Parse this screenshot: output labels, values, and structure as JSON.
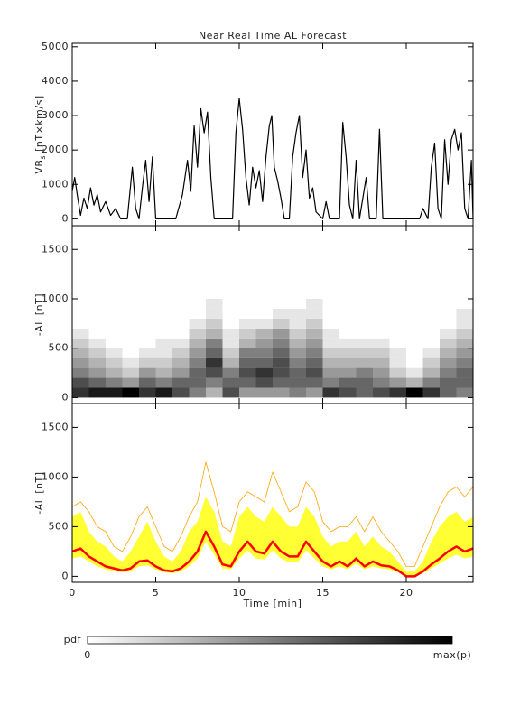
{
  "chart_data": [
    {
      "type": "line",
      "title": "Near Real Time AL Forecast",
      "ylabel": "VB",
      "ylabel_sub": "s",
      "ylabel_rest": "[nT×km/s]",
      "xlim": [
        0,
        24
      ],
      "ylim": [
        -200,
        5100
      ],
      "yticks": [
        0,
        1000,
        2000,
        3000,
        4000,
        5000
      ],
      "x": [
        0,
        0.15,
        0.3,
        0.5,
        0.7,
        0.9,
        1.1,
        1.3,
        1.5,
        1.7,
        2.0,
        2.3,
        2.6,
        2.9,
        3.3,
        3.6,
        3.8,
        4.0,
        4.2,
        4.4,
        4.6,
        4.8,
        5.0,
        5.5,
        6.2,
        6.6,
        6.9,
        7.1,
        7.3,
        7.5,
        7.7,
        7.9,
        8.1,
        8.3,
        8.5,
        9.0,
        9.6,
        9.8,
        10.0,
        10.2,
        10.4,
        10.6,
        10.8,
        11.0,
        11.2,
        11.4,
        11.6,
        11.8,
        11.95,
        12.1,
        12.3,
        12.5,
        12.7,
        13.0,
        13.2,
        13.4,
        13.6,
        13.8,
        14.0,
        14.2,
        14.4,
        14.6,
        15.0,
        15.2,
        15.4,
        16.0,
        16.2,
        16.4,
        16.6,
        16.8,
        17.0,
        17.2,
        17.6,
        17.8,
        18.2,
        18.4,
        18.6,
        19.0,
        20.0,
        20.8,
        21.0,
        21.3,
        21.5,
        21.7,
        21.9,
        22.1,
        22.3,
        22.5,
        22.7,
        22.9,
        23.1,
        23.3,
        23.5,
        23.7,
        23.9,
        24.0
      ],
      "series": [
        {
          "color": "#000000",
          "values": [
            800,
            1200,
            700,
            100,
            600,
            300,
            900,
            400,
            700,
            200,
            500,
            100,
            300,
            0,
            0,
            1500,
            300,
            0,
            900,
            1700,
            500,
            1800,
            0,
            0,
            0,
            700,
            1700,
            800,
            2700,
            1500,
            3200,
            2500,
            3100,
            1200,
            0,
            0,
            0,
            2500,
            3500,
            2600,
            1200,
            400,
            1500,
            900,
            1400,
            500,
            1800,
            2700,
            3000,
            1500,
            1100,
            600,
            0,
            0,
            1800,
            2500,
            3000,
            1200,
            2000,
            600,
            900,
            200,
            0,
            500,
            0,
            0,
            2800,
            1800,
            400,
            0,
            1700,
            0,
            1200,
            0,
            0,
            2600,
            0,
            0,
            0,
            0,
            300,
            0,
            1500,
            2200,
            300,
            0,
            2300,
            1000,
            2300,
            2600,
            2000,
            2500,
            300,
            0,
            1700,
            0
          ]
        }
      ]
    },
    {
      "type": "heatmap",
      "ylabel": "-AL [nT]",
      "xlim": [
        0,
        24
      ],
      "ylim": [
        -60,
        1740
      ],
      "yticks": [
        0,
        500,
        1000,
        1500
      ],
      "x_bins": [
        0,
        1,
        2,
        3,
        4,
        5,
        6,
        7,
        8,
        9,
        10,
        11,
        12,
        13,
        14,
        15,
        16,
        17,
        18,
        19,
        20,
        21,
        22,
        23,
        24
      ],
      "y_bins": [
        0,
        100,
        200,
        300,
        400,
        500,
        600,
        700,
        800,
        900,
        1000
      ],
      "z": [
        [
          0.8,
          0.7,
          0.5,
          0.4,
          0.3,
          0.2,
          0.1,
          0,
          0,
          0
        ],
        [
          0.9,
          0.6,
          0.4,
          0.3,
          0.2,
          0.1,
          0,
          0,
          0,
          0
        ],
        [
          0.9,
          0.5,
          0.3,
          0.2,
          0.1,
          0,
          0,
          0,
          0,
          0
        ],
        [
          1,
          0.4,
          0.2,
          0.1,
          0,
          0,
          0,
          0,
          0,
          0
        ],
        [
          0.8,
          0.6,
          0.4,
          0.2,
          0.1,
          0,
          0,
          0,
          0,
          0
        ],
        [
          0.9,
          0.5,
          0.3,
          0.2,
          0.1,
          0.1,
          0,
          0,
          0,
          0
        ],
        [
          0.7,
          0.6,
          0.4,
          0.3,
          0.2,
          0.1,
          0,
          0,
          0,
          0
        ],
        [
          0.5,
          0.6,
          0.6,
          0.5,
          0.4,
          0.3,
          0.2,
          0.1,
          0,
          0
        ],
        [
          0.3,
          0.5,
          0.7,
          0.8,
          0.6,
          0.5,
          0.3,
          0.2,
          0.1,
          0.1
        ],
        [
          0.7,
          0.6,
          0.5,
          0.3,
          0.2,
          0.1,
          0.1,
          0,
          0,
          0
        ],
        [
          0.4,
          0.6,
          0.7,
          0.6,
          0.5,
          0.3,
          0.2,
          0.1,
          0,
          0
        ],
        [
          0.4,
          0.7,
          0.8,
          0.6,
          0.5,
          0.4,
          0.3,
          0.1,
          0,
          0
        ],
        [
          0.4,
          0.6,
          0.7,
          0.7,
          0.6,
          0.5,
          0.4,
          0.2,
          0.1,
          0
        ],
        [
          0.5,
          0.6,
          0.6,
          0.5,
          0.4,
          0.3,
          0.2,
          0.1,
          0.1,
          0
        ],
        [
          0.4,
          0.6,
          0.7,
          0.6,
          0.5,
          0.4,
          0.3,
          0.2,
          0.1,
          0.1
        ],
        [
          0.8,
          0.5,
          0.4,
          0.3,
          0.2,
          0.1,
          0.1,
          0,
          0,
          0
        ],
        [
          0.7,
          0.6,
          0.4,
          0.3,
          0.2,
          0.1,
          0,
          0,
          0,
          0
        ],
        [
          0.6,
          0.6,
          0.5,
          0.3,
          0.2,
          0.1,
          0,
          0,
          0,
          0
        ],
        [
          0.7,
          0.5,
          0.4,
          0.3,
          0.2,
          0.1,
          0,
          0,
          0,
          0
        ],
        [
          0.8,
          0.4,
          0.2,
          0.1,
          0.1,
          0,
          0,
          0,
          0,
          0
        ],
        [
          1,
          0.3,
          0.1,
          0,
          0,
          0,
          0,
          0,
          0,
          0
        ],
        [
          0.8,
          0.5,
          0.3,
          0.2,
          0.1,
          0,
          0,
          0,
          0,
          0
        ],
        [
          0.6,
          0.6,
          0.5,
          0.4,
          0.3,
          0.2,
          0.1,
          0,
          0,
          0
        ],
        [
          0.5,
          0.6,
          0.6,
          0.5,
          0.4,
          0.3,
          0.2,
          0.1,
          0.1,
          0
        ]
      ],
      "colorbar": {
        "label": "pdf",
        "min_label": "0",
        "max_label": "max(p)"
      }
    },
    {
      "type": "line",
      "ylabel": "-AL [nT]",
      "xlabel": "Time [min]",
      "xlim": [
        0,
        24
      ],
      "ylim": [
        -60,
        1740
      ],
      "yticks": [
        0,
        500,
        1000,
        1500
      ],
      "xticks": [
        0,
        5,
        10,
        15,
        20
      ],
      "x": [
        0,
        0.5,
        1,
        1.5,
        2,
        2.5,
        3,
        3.5,
        4,
        4.5,
        5,
        5.5,
        6,
        6.5,
        7,
        7.5,
        8,
        8.5,
        9,
        9.5,
        10,
        10.5,
        11,
        11.5,
        12,
        12.5,
        13,
        13.5,
        14,
        14.5,
        15,
        15.5,
        16,
        16.5,
        17,
        17.5,
        18,
        18.5,
        19,
        19.5,
        20,
        20.5,
        21,
        21.5,
        22,
        22.5,
        23,
        23.5,
        24
      ],
      "band": {
        "color": "#ffff33",
        "upper": [
          600,
          650,
          450,
          350,
          300,
          200,
          150,
          250,
          400,
          550,
          350,
          200,
          150,
          250,
          450,
          550,
          800,
          650,
          350,
          300,
          600,
          700,
          600,
          550,
          700,
          600,
          500,
          500,
          700,
          600,
          400,
          300,
          350,
          350,
          450,
          300,
          400,
          300,
          250,
          150,
          50,
          50,
          150,
          350,
          500,
          600,
          650,
          550,
          600
        ],
        "lower": [
          180,
          200,
          150,
          100,
          70,
          50,
          40,
          50,
          100,
          110,
          70,
          40,
          30,
          50,
          100,
          180,
          350,
          220,
          80,
          70,
          180,
          260,
          180,
          170,
          260,
          180,
          140,
          140,
          260,
          180,
          100,
          70,
          100,
          70,
          130,
          70,
          100,
          80,
          70,
          40,
          0,
          0,
          30,
          80,
          130,
          180,
          220,
          180,
          200
        ]
      },
      "series": [
        {
          "color": "#ffa500",
          "width": 0.8,
          "values": [
            700,
            750,
            650,
            500,
            450,
            300,
            250,
            400,
            600,
            700,
            500,
            300,
            250,
            400,
            600,
            750,
            1150,
            850,
            500,
            450,
            750,
            850,
            800,
            750,
            1050,
            850,
            650,
            700,
            950,
            850,
            550,
            450,
            500,
            500,
            600,
            450,
            600,
            450,
            350,
            250,
            100,
            100,
            300,
            500,
            700,
            850,
            900,
            800,
            900
          ]
        },
        {
          "color": "#ff0000",
          "width": 2.5,
          "values": [
            250,
            280,
            200,
            150,
            100,
            80,
            60,
            80,
            150,
            160,
            100,
            60,
            50,
            80,
            150,
            250,
            450,
            300,
            120,
            100,
            250,
            350,
            250,
            230,
            350,
            250,
            200,
            200,
            350,
            250,
            150,
            100,
            150,
            100,
            180,
            100,
            150,
            110,
            100,
            60,
            0,
            0,
            50,
            120,
            180,
            250,
            300,
            250,
            280
          ]
        }
      ]
    }
  ]
}
